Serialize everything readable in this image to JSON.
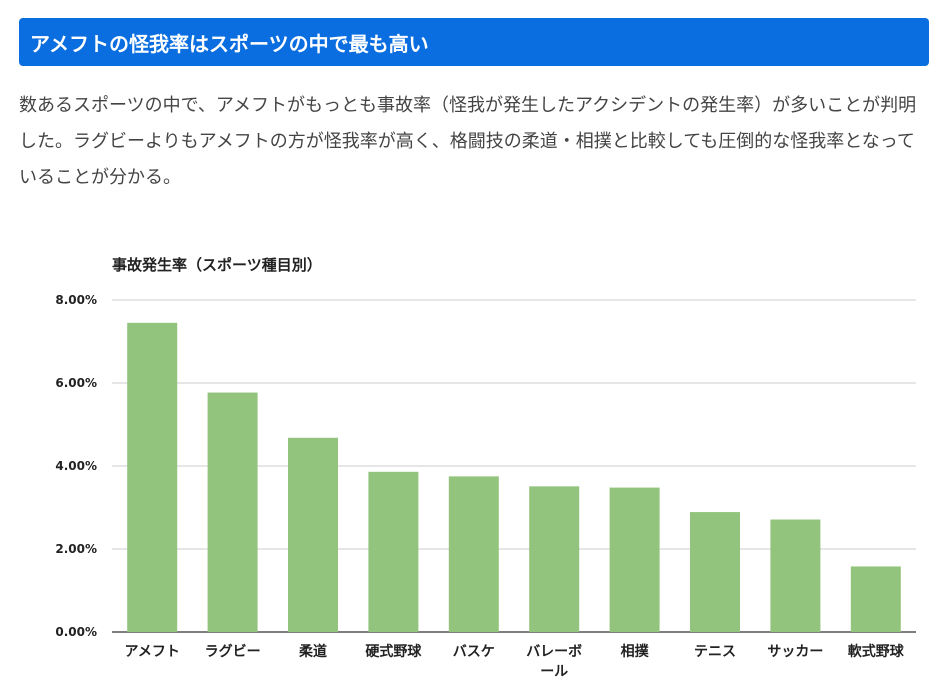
{
  "header": {
    "title": "アメフトの怪我率はスポーツの中で最も高い"
  },
  "article": {
    "paragraph": "数あるスポーツの中で、アメフトがもっとも事故率（怪我が発生したアクシデントの発生率）が多いことが判明した。ラグビーよりもアメフトの方が怪我率が高く、格闘技の柔道・相撲と比較しても圧倒的な怪我率となっていることが分かる。"
  },
  "colors": {
    "header_bg": "#0a6ee0",
    "bar": "#93c47d",
    "grid": "#cccccc",
    "text": "#444444"
  },
  "chart_data": {
    "type": "bar",
    "title": "事故発生率（スポーツ種目別）",
    "xlabel": "",
    "ylabel": "",
    "categories": [
      "アメフト",
      "ラグビー",
      "柔道",
      "硬式野球",
      "バスケ",
      "バレーボール",
      "相撲",
      "テニス",
      "サッカー",
      "軟式野球"
    ],
    "category_lines": [
      [
        "アメフト"
      ],
      [
        "ラグビー"
      ],
      [
        "柔道"
      ],
      [
        "硬式野球"
      ],
      [
        "バスケ"
      ],
      [
        "バレーボ",
        "ール"
      ],
      [
        "相撲"
      ],
      [
        "テニス"
      ],
      [
        "サッカー"
      ],
      [
        "軟式野球"
      ]
    ],
    "series": [
      {
        "values": [
          7.45,
          5.77,
          4.68,
          3.86,
          3.75,
          3.51,
          3.48,
          2.89,
          2.71,
          1.58
        ]
      }
    ],
    "ylim": [
      0,
      8
    ],
    "yticks": [
      0,
      2,
      4,
      6,
      8
    ],
    "ytick_labels": [
      "0.00%",
      "2.00%",
      "4.00%",
      "6.00%",
      "8.00%"
    ],
    "grid": true,
    "legend": "none"
  }
}
